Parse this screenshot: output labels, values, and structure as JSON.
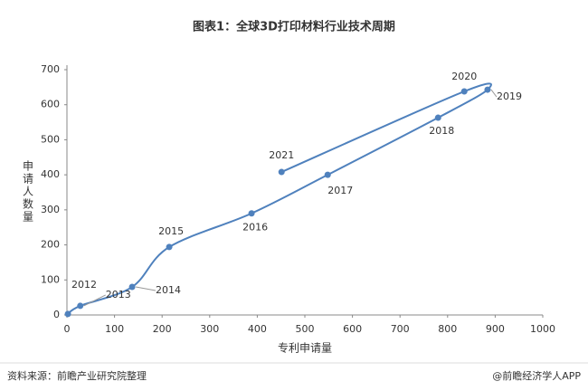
{
  "chart_data": {
    "type": "line",
    "title": "图表1：全球3D打印材料行业技术周期",
    "x_label": "专利申请量",
    "y_label": "申请人数量",
    "x": [
      2,
      28,
      137,
      215,
      388,
      548,
      780,
      884,
      835,
      451
    ],
    "values": [
      3,
      26,
      80,
      194,
      290,
      400,
      563,
      643,
      638,
      408
    ],
    "labels": [
      "2012",
      "2013",
      "2014",
      "2015",
      "2016",
      "2017",
      "2018",
      "2019",
      "2020",
      "2021"
    ],
    "color": "#4f81bd",
    "xlim": [
      0,
      1000
    ],
    "xticks": [
      0,
      100,
      200,
      300,
      400,
      500,
      600,
      700,
      800,
      900,
      1000
    ],
    "ylim": [
      0,
      700
    ],
    "yticks": [
      0,
      100,
      200,
      300,
      400,
      500,
      600,
      700
    ],
    "grid": false
  },
  "footer": {
    "source": "资料来源：前瞻产业研究院整理",
    "brand": "@前瞻经济学人APP"
  }
}
